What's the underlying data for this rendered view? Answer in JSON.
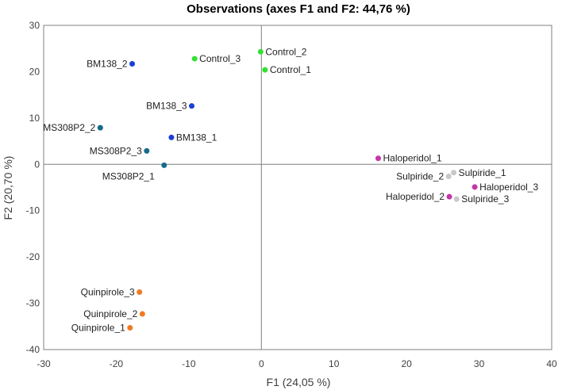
{
  "chart_data": {
    "type": "scatter",
    "title": "Observations (axes F1 and F2: 44,76 %)",
    "xlabel": "F1 (24,05 %)",
    "ylabel": "F2 (20,70 %)",
    "xlim": [
      -30,
      40
    ],
    "ylim": [
      -40,
      30
    ],
    "xticks": [
      "-30",
      "-20",
      "-10",
      "0",
      "10",
      "20",
      "30",
      "40"
    ],
    "yticks": [
      "30",
      "20",
      "10",
      "0",
      "-10",
      "-20",
      "-30",
      "-40"
    ],
    "points": [
      {
        "name": "BM138_2",
        "x": -17.8,
        "y": 21.7,
        "color": "#1a3fd6",
        "label_side": "left"
      },
      {
        "name": "Control_3",
        "x": -9.2,
        "y": 22.8,
        "color": "#33e033",
        "label_side": "right"
      },
      {
        "name": "Control_2",
        "x": -0.1,
        "y": 24.3,
        "color": "#33e033",
        "label_side": "right"
      },
      {
        "name": "Control_1",
        "x": 0.5,
        "y": 20.4,
        "color": "#33e033",
        "label_side": "right"
      },
      {
        "name": "BM138_3",
        "x": -9.6,
        "y": 12.6,
        "color": "#1a3fd6",
        "label_side": "left"
      },
      {
        "name": "BM138_1",
        "x": -12.4,
        "y": 5.8,
        "color": "#1a3fd6",
        "label_side": "right"
      },
      {
        "name": "MS308P2_2",
        "x": -22.2,
        "y": 7.9,
        "color": "#156b8a",
        "label_side": "left"
      },
      {
        "name": "MS308P2_3",
        "x": -15.8,
        "y": 2.9,
        "color": "#156b8a",
        "label_side": "left"
      },
      {
        "name": "MS308P2_1",
        "x": -13.4,
        "y": -0.2,
        "color": "#156b8a",
        "label_side": "below-left"
      },
      {
        "name": "Haloperidol_1",
        "x": 16.1,
        "y": 1.3,
        "color": "#c535a8",
        "label_side": "right"
      },
      {
        "name": "Sulpiride_1",
        "x": 26.5,
        "y": -1.8,
        "color": "#c8c8c8",
        "label_side": "right"
      },
      {
        "name": "Sulpiride_2",
        "x": 25.8,
        "y": -2.6,
        "color": "#c8c8c8",
        "label_side": "left"
      },
      {
        "name": "Haloperidol_3",
        "x": 29.4,
        "y": -4.9,
        "color": "#c535a8",
        "label_side": "right"
      },
      {
        "name": "Haloperidol_2",
        "x": 25.9,
        "y": -7.0,
        "color": "#c535a8",
        "label_side": "left"
      },
      {
        "name": "Sulpiride_3",
        "x": 26.9,
        "y": -7.5,
        "color": "#c8c8c8",
        "label_side": "right"
      },
      {
        "name": "Quinpirole_3",
        "x": -16.8,
        "y": -27.6,
        "color": "#f07a22",
        "label_side": "left"
      },
      {
        "name": "Quinpirole_2",
        "x": -16.4,
        "y": -32.3,
        "color": "#f07a22",
        "label_side": "left"
      },
      {
        "name": "Quinpirole_1",
        "x": -18.1,
        "y": -35.3,
        "color": "#f07a22",
        "label_side": "left"
      }
    ]
  }
}
